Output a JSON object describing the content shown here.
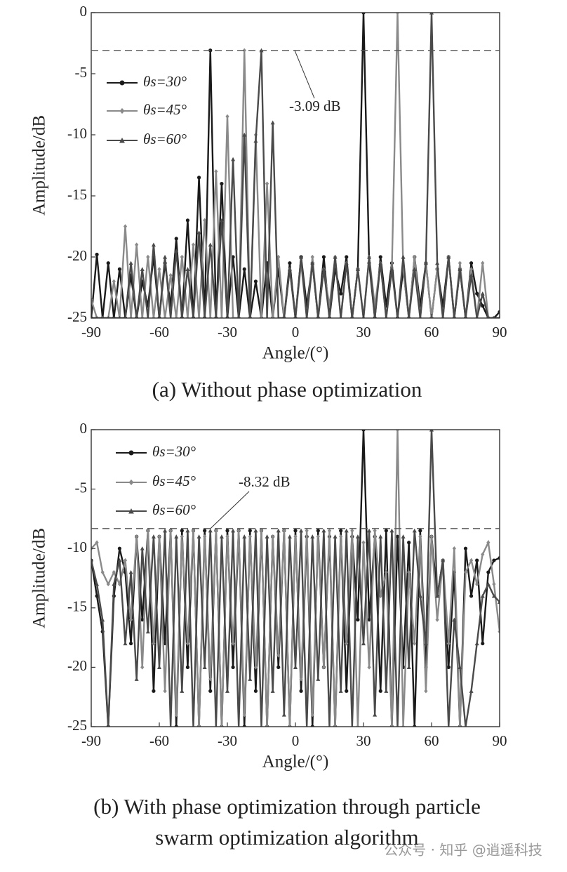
{
  "chart_data": [
    {
      "type": "line",
      "caption": "(a) Without phase optimization",
      "xlabel": "Angle/(°)",
      "ylabel": "Amplitude/dB",
      "x": [
        -90,
        -87.5,
        -85,
        -82.5,
        -80,
        -77.5,
        -75,
        -72.5,
        -70,
        -67.5,
        -65,
        -62.5,
        -60,
        -57.5,
        -55,
        -52.5,
        -50,
        -47.5,
        -45,
        -42.5,
        -40,
        -37.5,
        -35,
        -32.5,
        -30,
        -27.5,
        -25,
        -22.5,
        -20,
        -17.5,
        -15,
        -12.5,
        -10,
        -7.5,
        -5,
        -2.5,
        0,
        2.5,
        5,
        7.5,
        10,
        12.5,
        15,
        17.5,
        20,
        22.5,
        25,
        27.5,
        30,
        32.5,
        35,
        37.5,
        40,
        42.5,
        45,
        47.5,
        50,
        52.5,
        55,
        57.5,
        60,
        62.5,
        65,
        67.5,
        70,
        72.5,
        75,
        77.5,
        80,
        82.5,
        85,
        87.5,
        90
      ],
      "series": [
        {
          "name": "θs=30°",
          "color": "#1a1a1a",
          "marker": "circle",
          "values": [
            -25,
            -19.8,
            -25,
            -20.5,
            -25,
            -21,
            -25,
            -21.5,
            -25,
            -22,
            -24,
            -20,
            -25,
            -20.5,
            -24,
            -18.5,
            -25,
            -17,
            -25,
            -13.5,
            -25,
            -3.09,
            -25,
            -14,
            -25,
            -20,
            -25,
            -21,
            -25,
            -22,
            -25,
            -20.5,
            -25,
            -21,
            -25,
            -20.5,
            -25,
            -20,
            -24,
            -20.5,
            -25,
            -20,
            -25,
            -21,
            -23,
            -20,
            -25,
            -21,
            0,
            -20.5,
            -25,
            -20,
            -24,
            -20.5,
            -25,
            -21,
            -25,
            -20,
            -24,
            -20.5,
            -25,
            -21,
            -24,
            -20,
            -25,
            -21,
            -25,
            -20.5,
            -23,
            -24,
            -25,
            -25,
            -24.5
          ]
        },
        {
          "name": "θs=45°",
          "color": "#8a8a8a",
          "marker": "diamond",
          "values": [
            -23.5,
            -25,
            -25,
            -25,
            -22,
            -25,
            -17.5,
            -25,
            -19,
            -25,
            -20,
            -25,
            -21,
            -25,
            -21.5,
            -25,
            -20,
            -25,
            -19,
            -25,
            -17,
            -25,
            -13,
            -25,
            -8.5,
            -25,
            -25,
            -3.09,
            -25,
            -10,
            -25,
            -14,
            -25,
            -20,
            -25,
            -21,
            -25,
            -20.5,
            -25,
            -20,
            -25,
            -21,
            -24,
            -20,
            -25,
            -20.5,
            -25,
            -21,
            -25,
            -20,
            -24,
            -20.5,
            -25,
            -21,
            0,
            -21,
            -25,
            -20,
            -25,
            -20.5,
            -25,
            -21,
            -25,
            -20,
            -25,
            -20.5,
            -25,
            -21,
            -25,
            -20.5,
            -25,
            -25,
            -25
          ]
        },
        {
          "name": "θs=60°",
          "color": "#4a4a4a",
          "marker": "triangle",
          "values": [
            -25,
            -25,
            -25,
            -25,
            -25,
            -25,
            -25,
            -20.5,
            -25,
            -21,
            -25,
            -19,
            -25,
            -20,
            -25,
            -19.5,
            -25,
            -21,
            -25,
            -18,
            -25,
            -19,
            -25,
            -17,
            -25,
            -12,
            -25,
            -10,
            -25,
            -10.5,
            -3.09,
            -25,
            -9,
            -25,
            -25,
            -21,
            -25,
            -20,
            -25,
            -20.5,
            -25,
            -21,
            -25,
            -20,
            -25,
            -20.5,
            -25,
            -21,
            -25,
            -20,
            -25,
            -20.5,
            -25,
            -21,
            -25,
            -20,
            -25,
            -21,
            -25,
            -20.5,
            0,
            -20.5,
            -25,
            -20,
            -25,
            -21,
            -25,
            -21.5,
            -25,
            -23,
            -25,
            -25,
            -25
          ]
        }
      ],
      "xlim": [
        -90,
        90
      ],
      "xticks": [
        -90,
        -60,
        -30,
        0,
        30,
        60,
        90
      ],
      "ylim": [
        -25,
        0
      ],
      "yticks": [
        -25,
        -20,
        -15,
        -10,
        -5,
        0
      ],
      "reference_line": {
        "value": -3.09,
        "label": "-3.09 dB"
      }
    },
    {
      "type": "line",
      "caption": [
        "(b) With phase optimization through particle",
        "swarm optimization algorithm"
      ],
      "xlabel": "Angle/(°)",
      "ylabel": "Amplitude/dB",
      "x": [
        -90,
        -87.5,
        -85,
        -82.5,
        -80,
        -77.5,
        -75,
        -72.5,
        -70,
        -67.5,
        -65,
        -62.5,
        -60,
        -57.5,
        -55,
        -52.5,
        -50,
        -47.5,
        -45,
        -42.5,
        -40,
        -37.5,
        -35,
        -32.5,
        -30,
        -27.5,
        -25,
        -22.5,
        -20,
        -17.5,
        -15,
        -12.5,
        -10,
        -7.5,
        -5,
        -2.5,
        0,
        2.5,
        5,
        7.5,
        10,
        12.5,
        15,
        17.5,
        20,
        22.5,
        25,
        27.5,
        30,
        32.5,
        35,
        37.5,
        40,
        42.5,
        45,
        47.5,
        50,
        52.5,
        55,
        57.5,
        60,
        62.5,
        65,
        67.5,
        70,
        72.5,
        75,
        77.5,
        80,
        82.5,
        85,
        87.5,
        90
      ],
      "series": [
        {
          "name": "θs=30°",
          "color": "#1a1a1a",
          "marker": "circle",
          "values": [
            -11,
            -14,
            -17,
            -25,
            -14,
            -10,
            -12,
            -18,
            -9,
            -16,
            -8.5,
            -22,
            -9,
            -18,
            -8.5,
            -25,
            -8.5,
            -20,
            -8.5,
            -25,
            -8.5,
            -22,
            -8.5,
            -25,
            -8.5,
            -20,
            -8.5,
            -25,
            -8.5,
            -22,
            -8.5,
            -25,
            -9,
            -20,
            -8.5,
            -25,
            -8.5,
            -22,
            -9,
            -25,
            -8.5,
            -20,
            -9,
            -25,
            -8.5,
            -22,
            -9,
            -16,
            0,
            -16,
            -9,
            -22,
            -8.5,
            -25,
            -9,
            -20,
            -9.5,
            -25,
            -8.5,
            -20,
            -9,
            -14,
            -11,
            -20,
            -12,
            -25,
            -10,
            -14,
            -11,
            -18,
            -12,
            -11,
            -10.8
          ]
        },
        {
          "name": "θs=45°",
          "color": "#8a8a8a",
          "marker": "diamond",
          "values": [
            -10,
            -9.5,
            -12,
            -13,
            -12,
            -13,
            -11,
            -16,
            -9,
            -20,
            -8.5,
            -18,
            -9,
            -22,
            -8.5,
            -24,
            -9,
            -18,
            -8.5,
            -25,
            -9,
            -21,
            -8.5,
            -25,
            -9,
            -18,
            -8.5,
            -24,
            -9,
            -20,
            -8.5,
            -25,
            -9,
            -19,
            -8.5,
            -25,
            -9,
            -21,
            -8.5,
            -24,
            -9,
            -20,
            -8.5,
            -25,
            -9,
            -18,
            -8.5,
            -25,
            -9.5,
            -20,
            -8.5,
            -14,
            -12,
            -25,
            0,
            -25,
            -12,
            -18,
            -9,
            -22,
            -9,
            -16,
            -11,
            -18,
            -10,
            -25,
            -12,
            -11,
            -13,
            -10.5,
            -9.5,
            -13,
            -17
          ]
        },
        {
          "name": "θs=60°",
          "color": "#4a4a4a",
          "marker": "triangle",
          "values": [
            -11,
            -13,
            -16,
            -25,
            -13,
            -11,
            -18,
            -12,
            -21,
            -10,
            -17,
            -9,
            -20,
            -8.5,
            -25,
            -9,
            -22,
            -8.5,
            -25,
            -9,
            -20,
            -8.5,
            -25,
            -9,
            -22,
            -8.5,
            -25,
            -9,
            -21,
            -8.5,
            -25,
            -9,
            -22,
            -8.5,
            -24,
            -9,
            -20,
            -8.5,
            -25,
            -9,
            -21,
            -8.5,
            -25,
            -9,
            -22,
            -8.5,
            -25,
            -9,
            -18,
            -8.5,
            -24,
            -9,
            -22,
            -8.5,
            -25,
            -9,
            -20,
            -8.5,
            -14,
            -18,
            0,
            -14,
            -11,
            -25,
            -16,
            -20,
            -25,
            -22,
            -18,
            -14,
            -13,
            -14,
            -14.5
          ]
        }
      ],
      "xlim": [
        -90,
        90
      ],
      "xticks": [
        -90,
        -60,
        -30,
        0,
        30,
        60,
        90
      ],
      "ylim": [
        -25,
        0
      ],
      "yticks": [
        -25,
        -20,
        -15,
        -10,
        -5,
        0
      ],
      "reference_line": {
        "value": -8.32,
        "label": "-8.32 dB"
      }
    }
  ],
  "watermark": "公众号 · 知乎 @逍遥科技"
}
